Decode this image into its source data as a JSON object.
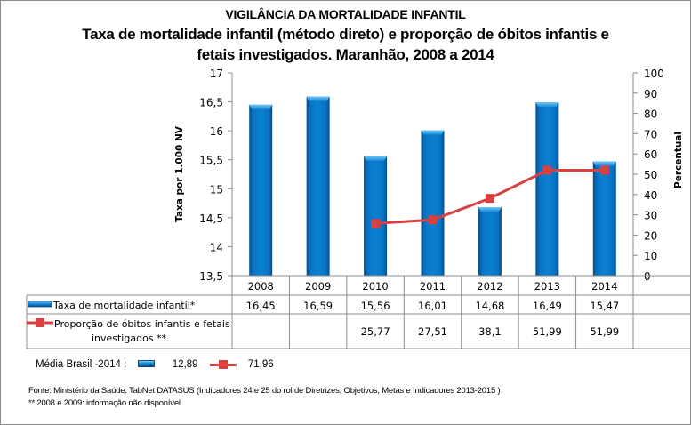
{
  "header": {
    "supertitle": "VIGILÂNCIA DA MORTALIDADE INFANTIL",
    "title_line1": "Taxa de mortalidade infantil (método direto) e proporção de óbitos infantis e",
    "title_line2": "fetais investigados. Maranhão, 2008 a 2014"
  },
  "chart_data": {
    "type": "bar+line",
    "title": "Taxa de mortalidade infantil (método direto) e proporção de óbitos infantis e fetais investigados. Maranhão, 2008 a 2014",
    "categories": [
      "2008",
      "2009",
      "2010",
      "2011",
      "2012",
      "2013",
      "2014"
    ],
    "series": [
      {
        "name": "Taxa de mortalidade infantil*",
        "type": "bar",
        "axis": "left",
        "color": "#0a72c0",
        "values": [
          16.45,
          16.59,
          15.56,
          16.01,
          14.68,
          16.49,
          15.47
        ],
        "labels": [
          "16,45",
          "16,59",
          "15,56",
          "16,01",
          "14,68",
          "16,49",
          "15,47"
        ]
      },
      {
        "name": "Proporção de óbitos infantis e fetais investigados **",
        "name_line1": "Proporção de óbitos infantis e fetais",
        "name_line2": "investigados **",
        "type": "line",
        "axis": "right",
        "color": "#d9403f",
        "values": [
          null,
          null,
          25.77,
          27.51,
          38.1,
          51.99,
          51.99
        ],
        "labels": [
          "",
          "",
          "25,77",
          "27,51",
          "38,1",
          "51,99",
          "51,99"
        ]
      }
    ],
    "y_left": {
      "label": "Taxa  por 1.000 NV",
      "range": [
        13.5,
        17
      ],
      "ticks": [
        13.5,
        14,
        14.5,
        15,
        15.5,
        16,
        16.5,
        17
      ],
      "tick_labels": [
        "13,5",
        "14",
        "14,5",
        "15",
        "15,5",
        "16",
        "16,5",
        "17"
      ]
    },
    "y_right": {
      "label": "Percentual",
      "range": [
        0,
        100
      ],
      "ticks": [
        0,
        10,
        20,
        30,
        40,
        50,
        60,
        70,
        80,
        90,
        100
      ],
      "tick_labels": [
        "0",
        "10",
        "20",
        "30",
        "40",
        "50",
        "60",
        "70",
        "80",
        "90",
        "100"
      ]
    },
    "grid": false,
    "legend": "data-table-below"
  },
  "brasil_average": {
    "label": "Média Brasil -2014 :",
    "taxa": "12,89",
    "proporcao": "71,96"
  },
  "footer": {
    "source": "Fonte: Ministério da Saúde. TabNet DATASUS (Indicadores 24 e 25 do rol de Diretrizes, Objetivos, Metas e Indicadores 2013-2015 )",
    "note": "** 2008 e 2009: informação não disponível"
  }
}
